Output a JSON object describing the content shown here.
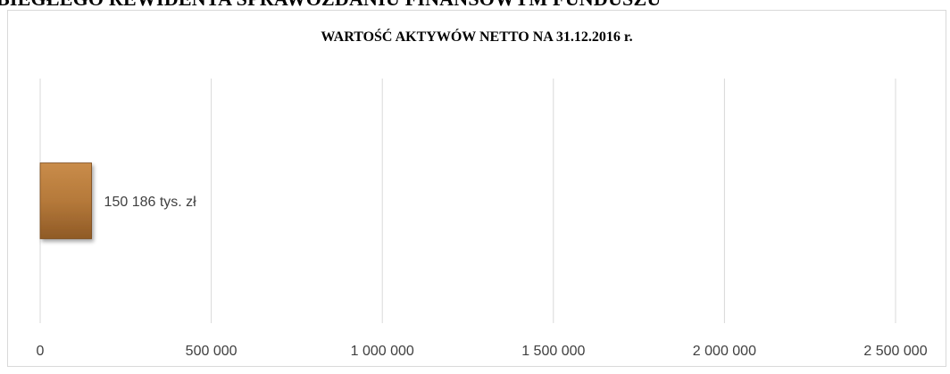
{
  "document": {
    "heading": "BIEGŁEGO REWIDENTA SPRAWOZDANIU FINANSOWYM FUNDUSZU"
  },
  "chart_data": {
    "type": "bar",
    "orientation": "horizontal",
    "title": "WARTOŚĆ AKTYWÓW NETTO NA 31.12.2016 r.",
    "xlabel": "",
    "ylabel": "",
    "categories": [
      ""
    ],
    "values": [
      150186
    ],
    "data_labels": [
      "150 186 tys. zł"
    ],
    "xlim": [
      0,
      2500000
    ],
    "x_ticks": [
      0,
      500000,
      1000000,
      1500000,
      2000000,
      2500000
    ],
    "x_tick_labels": [
      "0",
      "500 000",
      "1 000 000",
      "1 500 000",
      "2 000 000",
      "2 500 000"
    ],
    "grid": true,
    "legend": "none",
    "bar_color": "#b5793a"
  }
}
